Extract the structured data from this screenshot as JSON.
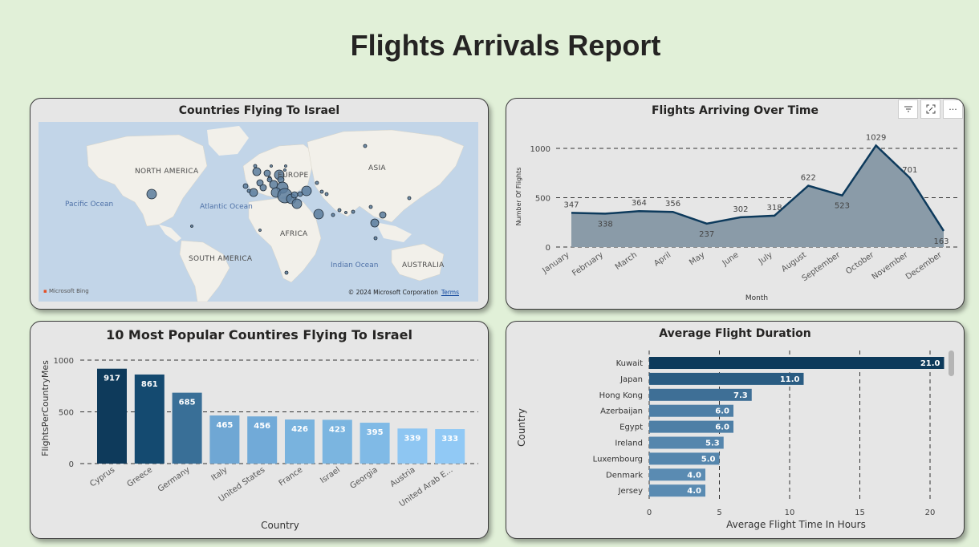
{
  "report": {
    "title": "Flights Arrivals Report"
  },
  "map": {
    "title": "Countries Flying To Israel",
    "labels": {
      "north_america": "NORTH AMERICA",
      "europe": "EUROPE",
      "asia": "ASIA",
      "africa": "AFRICA",
      "south_america": "SOUTH AMERICA",
      "australia": "AUSTRALIA",
      "pacific": "Pacific Ocean",
      "atlantic": "Atlantic Ocean",
      "indian": "Indian Ocean"
    },
    "bing_logo": "Microsoft Bing",
    "copyright": "© 2024 Microsoft Corporation",
    "terms": "Terms",
    "colors": {
      "bubble": "#5c7c9c",
      "land": "#f2f0ea",
      "water": "#c2d5e8"
    }
  },
  "line_chart": {
    "title": "Flights Arriving Over Time",
    "toolbar": {
      "filter_icon": "filter-icon",
      "focus_icon": "focus-mode-icon",
      "more_icon": "more-options-icon"
    }
  },
  "bar_chart": {
    "title": "10 Most Popular Countires Flying To Israel"
  },
  "hbar_chart": {
    "title": "Average Flight Duration"
  },
  "chart_data": [
    {
      "type": "area",
      "title": "Flights Arriving Over Time",
      "xlabel": "Month",
      "ylabel": "Number Of Flights",
      "categories": [
        "January",
        "February",
        "March",
        "April",
        "May",
        "June",
        "July",
        "August",
        "September",
        "October",
        "November",
        "December"
      ],
      "values": [
        347,
        338,
        364,
        356,
        237,
        302,
        318,
        622,
        523,
        1029,
        701,
        163
      ],
      "yticks": [
        0,
        500,
        1000
      ],
      "ylim": [
        0,
        1100
      ],
      "grid": true,
      "color": "#0d3a5c"
    },
    {
      "type": "bar",
      "title": "10 Most Popular Countires Flying To Israel",
      "xlabel": "Country",
      "ylabel": "FlightsPerCountryMes",
      "categories": [
        "Cyprus",
        "Greece",
        "Germany",
        "Italy",
        "United States",
        "France",
        "Israel",
        "Georgia",
        "Austria",
        "United Arab E..."
      ],
      "values": [
        917,
        861,
        685,
        465,
        456,
        426,
        423,
        395,
        339,
        333
      ],
      "colors": [
        "#0e3a5b",
        "#144a70",
        "#396f97",
        "#6fa7d4",
        "#71aad8",
        "#79b3de",
        "#7bb5e0",
        "#80bae6",
        "#8ec6f2",
        "#91c9f5"
      ],
      "yticks": [
        0,
        500,
        1000
      ],
      "ylim": [
        0,
        1000
      ],
      "grid": true
    },
    {
      "type": "bar",
      "orientation": "horizontal",
      "title": "Average Flight Duration",
      "xlabel": "Average Flight Time In Hours",
      "ylabel": "Country",
      "categories": [
        "Kuwait",
        "Japan",
        "Hong Kong",
        "Azerbaijan",
        "Egypt",
        "Ireland",
        "Luxembourg",
        "Denmark",
        "Jersey"
      ],
      "values": [
        21.0,
        11.0,
        7.3,
        6.0,
        6.0,
        5.3,
        5.0,
        4.0,
        4.0
      ],
      "value_labels": [
        "21.0",
        "11.0",
        "7.3",
        "6.0",
        "6.0",
        "5.3",
        "5.0",
        "4.0",
        "4.0"
      ],
      "colors": [
        "#0d3a5b",
        "#2a5c82",
        "#3e6f96",
        "#4e7fa6",
        "#4e7fa6",
        "#5586ad",
        "#5586ad",
        "#5a8bb2",
        "#5a8bb2"
      ],
      "xticks": [
        0,
        5,
        10,
        15,
        20
      ],
      "xlim": [
        0,
        21
      ],
      "grid": true
    }
  ]
}
